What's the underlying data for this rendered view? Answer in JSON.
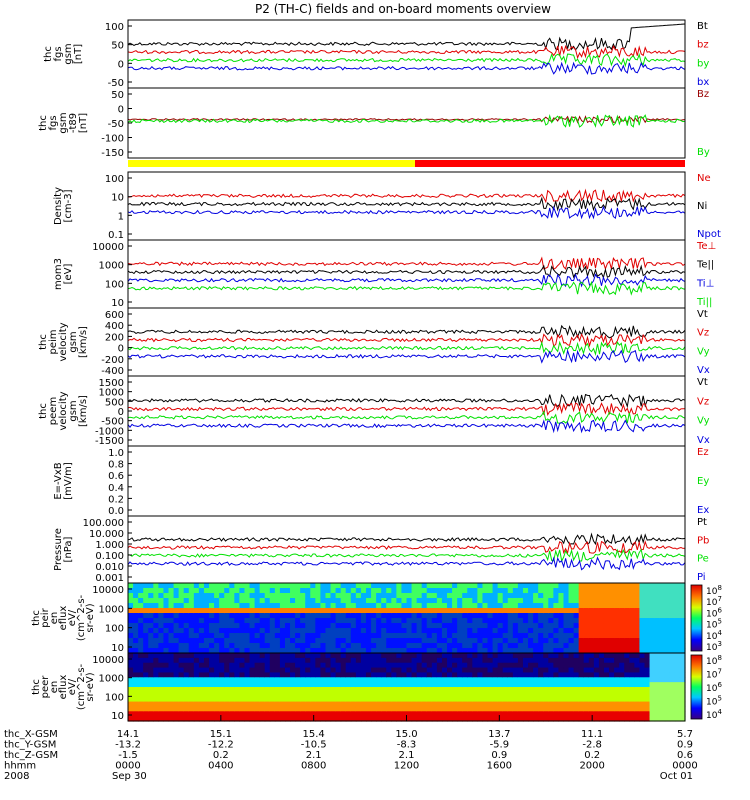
{
  "title": "P2 (TH-C) fields and on-board moments overview",
  "colors": {
    "black": "#000000",
    "red": "#e00000",
    "green": "#00e000",
    "blue": "#0000e0",
    "dark_red": "#990000",
    "yellow": "#ffff00",
    "bar_red": "#ff0000"
  },
  "chart_data": [
    {
      "type": "line",
      "panel": "fgs",
      "ylabel_lines": [
        "thc",
        "fgs",
        "gsm",
        "[nT]"
      ],
      "yticks": [
        "100",
        "50",
        "0",
        "-50"
      ],
      "ylim": [
        -60,
        105
      ],
      "series": [
        {
          "name": "Bt",
          "color": "black"
        },
        {
          "name": "bz",
          "color": "red"
        },
        {
          "name": "by",
          "color": "green"
        },
        {
          "name": "bx",
          "color": "blue"
        }
      ]
    },
    {
      "type": "line",
      "panel": "fgs_t89",
      "ylabel_lines": [
        "thc",
        "fgs",
        "gsm",
        "-t89",
        "[nT]"
      ],
      "yticks": [
        "50",
        "0",
        "-50",
        "-100",
        "-150"
      ],
      "ylim": [
        -170,
        60
      ],
      "series": [
        {
          "name": "Bz",
          "color": "dark_red"
        },
        {
          "name": "By",
          "color": "green"
        }
      ]
    },
    {
      "type": "line",
      "panel": "density",
      "ylabel_lines": [
        "Density",
        "[cm-3]"
      ],
      "yticks": [
        "100",
        "10",
        "1",
        "0.1"
      ],
      "log": true,
      "ylim": [
        0.05,
        150
      ],
      "series": [
        {
          "name": "Ne",
          "color": "red"
        },
        {
          "name": "Ni",
          "color": "black"
        },
        {
          "name": "Npot",
          "color": "blue"
        }
      ]
    },
    {
      "type": "line",
      "panel": "temperature",
      "ylabel_lines": [
        "mom3",
        "[eV]"
      ],
      "yticks": [
        "10000",
        "1000",
        "100",
        "10"
      ],
      "log": true,
      "ylim": [
        8,
        12000
      ],
      "series": [
        {
          "name": "Te⊥",
          "color": "red"
        },
        {
          "name": "Te||",
          "color": "black"
        },
        {
          "name": "Ti⊥",
          "color": "blue"
        },
        {
          "name": "Ti||",
          "color": "green"
        }
      ]
    },
    {
      "type": "line",
      "panel": "peim_velocity",
      "ylabel_lines": [
        "thc",
        "peim",
        "velocity",
        "gsm",
        "[km/s]"
      ],
      "yticks": [
        "600",
        "400",
        "200",
        "0",
        "-200",
        "-400"
      ],
      "ylim": [
        -480,
        620
      ],
      "series": [
        {
          "name": "Vt",
          "color": "black"
        },
        {
          "name": "Vz",
          "color": "red"
        },
        {
          "name": "Vy",
          "color": "green"
        },
        {
          "name": "Vx",
          "color": "blue"
        }
      ]
    },
    {
      "type": "line",
      "panel": "peem_velocity",
      "ylabel_lines": [
        "thc",
        "peem",
        "velocity",
        "gsm",
        "[km/s]"
      ],
      "yticks": [
        "1500",
        "1000",
        "500",
        "0",
        "-500",
        "-1000",
        "-1500"
      ],
      "ylim": [
        -1600,
        1550
      ],
      "series": [
        {
          "name": "Vt",
          "color": "black"
        },
        {
          "name": "Vz",
          "color": "red"
        },
        {
          "name": "Vy",
          "color": "green"
        },
        {
          "name": "Vx",
          "color": "blue"
        }
      ]
    },
    {
      "type": "line",
      "panel": "e_vxb",
      "ylabel_lines": [
        "E=-VxB",
        "[mV/m]"
      ],
      "yticks": [
        "1.0",
        "0.8",
        "0.6",
        "0.4",
        "0.2",
        "0.0"
      ],
      "ylim": [
        0,
        1
      ],
      "series": [
        {
          "name": "Ez",
          "color": "red"
        },
        {
          "name": "Ey",
          "color": "green"
        },
        {
          "name": "Ex",
          "color": "blue"
        }
      ]
    },
    {
      "type": "line",
      "panel": "pressure",
      "ylabel_lines": [
        "Pressure",
        "[nPa]"
      ],
      "yticks": [
        "100.000",
        "10.000",
        "1.000",
        "0.100",
        "0.010",
        "0.001"
      ],
      "log": true,
      "ylim": [
        0.0008,
        120
      ],
      "series": [
        {
          "name": "Pt",
          "color": "black"
        },
        {
          "name": "Pb",
          "color": "red"
        },
        {
          "name": "Pe",
          "color": "green"
        },
        {
          "name": "Pi",
          "color": "blue"
        }
      ]
    },
    {
      "type": "heatmap",
      "panel": "ion_eflux",
      "ylabel_lines": [
        "thc",
        "peir",
        "en",
        "eflux",
        "eV/",
        "(cm^2-s-",
        "sr-eV)"
      ],
      "yticks": [
        "10000",
        "1000",
        "100",
        "10"
      ],
      "log": true,
      "colorbar_labels": [
        "10^8",
        "10^7",
        "10^6",
        "10^5",
        "10^4",
        "10^3"
      ]
    },
    {
      "type": "heatmap",
      "panel": "electron_eflux",
      "ylabel_lines": [
        "thc",
        "peer",
        "en",
        "eflux",
        "eV/",
        "(cm^2-s-",
        "sr-eV)"
      ],
      "yticks": [
        "10000",
        "1000",
        "100",
        "10"
      ],
      "log": true,
      "colorbar_labels": [
        "10^8",
        "10^7",
        "10^6",
        "10^5",
        "10^4"
      ]
    }
  ],
  "x_axis": {
    "row_labels": [
      "thc_X-GSM",
      "thc_Y-GSM",
      "thc_Z-GSM",
      "hhmm",
      "2008"
    ],
    "columns": [
      {
        "vals": [
          "14.1",
          "-13.2",
          "-1.5",
          "0000",
          "Sep 30"
        ]
      },
      {
        "vals": [
          "15.1",
          "-12.2",
          "0.2",
          "0400",
          ""
        ]
      },
      {
        "vals": [
          "15.4",
          "-10.5",
          "2.1",
          "0800",
          ""
        ]
      },
      {
        "vals": [
          "15.0",
          "-8.3",
          "2.1",
          "1200",
          ""
        ]
      },
      {
        "vals": [
          "13.7",
          "-5.9",
          "0.9",
          "1600",
          ""
        ]
      },
      {
        "vals": [
          "11.1",
          "-2.8",
          "0.2",
          "2000",
          ""
        ]
      },
      {
        "vals": [
          "5.7",
          "0.9",
          "0.6",
          "0000",
          "Oct 01"
        ]
      }
    ]
  }
}
